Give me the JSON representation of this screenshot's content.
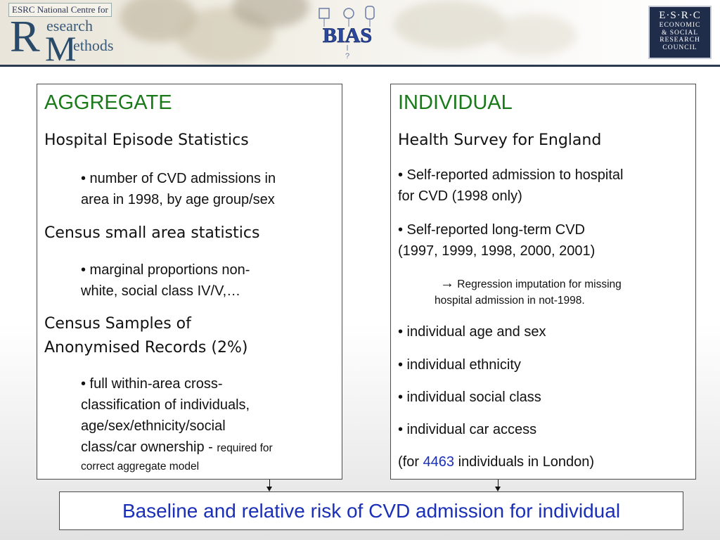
{
  "header": {
    "ncrm_tag": "ESRC National Centre for",
    "ncrm_R": "R",
    "ncrm_word1": "esearch",
    "ncrm_M": "M",
    "ncrm_word2": "ethods",
    "bias_logo": "BIAS",
    "esrc_top": "E·S·R·C",
    "esrc_lines": [
      "ECONOMIC",
      "& SOCIAL",
      "RESEARCH",
      "COUNCIL"
    ]
  },
  "left": {
    "heading": "AGGREGATE",
    "s1_title": "Hospital Episode Statistics",
    "s1_b1_line1": "• number of CVD admissions in",
    "s1_b1_line2": "area in 1998, by age group/sex",
    "s2_title": "Census small area statistics",
    "s2_b1_line1": "• marginal proportions non-",
    "s2_b1_line2": "white, social class IV/V,…",
    "s3_title_line1": "Census Samples of",
    "s3_title_line2": "Anonymised Records (2%)",
    "s3_b1_line1": "• full within-area cross-",
    "s3_b1_line2": "classification of individuals,",
    "s3_b1_line3": "age/sex/ethnicity/social",
    "s3_b1_line4a": "class/car ownership - ",
    "s3_b1_line4b": "required for",
    "s3_b1_line5": "correct aggregate model"
  },
  "right": {
    "heading": "INDIVIDUAL",
    "title": "Health Survey for England",
    "b1_line1": "• Self-reported admission to hospital",
    "b1_line2": "for CVD (1998 only)",
    "b2_line1": "• Self-reported long-term CVD",
    "b2_line2": "(1997, 1999, 1998, 2000, 2001)",
    "note_arrow": "→",
    "note_line1": " Regression imputation for missing",
    "note_line2": "hospital admission in not-1998.",
    "b3": "• individual age and sex",
    "b4": "• individual ethnicity",
    "b5": "• individual social class",
    "b6": "• individual car access",
    "footer_pre": "(for ",
    "footer_num": "4463",
    "footer_post": " individuals in London)"
  },
  "bottom": {
    "text": "Baseline and relative risk of CVD admission for individual"
  },
  "colors": {
    "heading_green": "#1a7a1a",
    "accent_blue": "#1a2fb8",
    "header_navy": "#2a3a50"
  }
}
